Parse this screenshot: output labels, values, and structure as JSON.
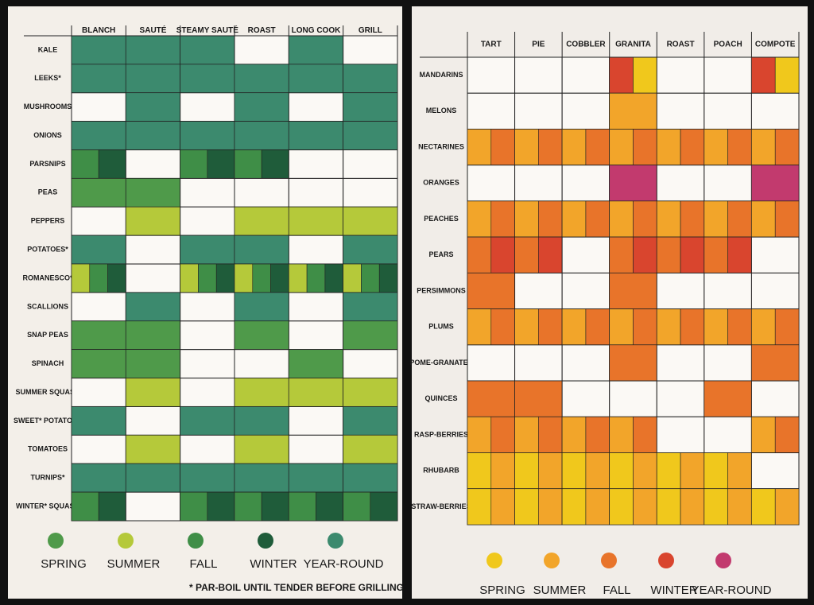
{
  "pages": [
    {
      "columns": [
        "BLANCH",
        "SAUTÉ",
        "STEAMY SAUTÉ",
        "ROAST",
        "LONG COOK",
        "GRILL"
      ],
      "rows": [
        "KALE",
        "LEEKS*",
        "MUSHROOMS",
        "ONIONS",
        "PARSNIPS",
        "PEAS",
        "PEPPERS",
        "POTATOES*",
        "ROMANESCO*",
        "SCALLIONS",
        "SNAP PEAS",
        "SPINACH",
        "SUMMER SQUASH",
        "SWEET* POTATOES",
        "TOMATOES",
        "TURNIPS*",
        "WINTER* SQUASH"
      ],
      "cells": [
        [
          [
            4
          ],
          [
            4
          ],
          [
            4
          ],
          [],
          [
            4
          ],
          []
        ],
        [
          [
            4
          ],
          [
            4
          ],
          [
            4
          ],
          [
            4
          ],
          [
            4
          ],
          [
            4
          ]
        ],
        [
          [],
          [
            4
          ],
          [],
          [
            4
          ],
          [],
          [
            4
          ]
        ],
        [
          [
            4
          ],
          [
            4
          ],
          [
            4
          ],
          [
            4
          ],
          [
            4
          ],
          [
            4
          ]
        ],
        [
          [
            2,
            3
          ],
          [],
          [
            2,
            3
          ],
          [
            2,
            3
          ],
          [],
          []
        ],
        [
          [
            0
          ],
          [
            0
          ],
          [],
          [],
          [],
          []
        ],
        [
          [],
          [
            1
          ],
          [],
          [
            1
          ],
          [
            1
          ],
          [
            1
          ]
        ],
        [
          [
            4
          ],
          [],
          [
            4
          ],
          [
            4
          ],
          [],
          [
            4
          ]
        ],
        [
          [
            1,
            2,
            3
          ],
          [],
          [
            1,
            2,
            3
          ],
          [
            1,
            2,
            3
          ],
          [
            1,
            2,
            3
          ],
          [
            1,
            2,
            3
          ]
        ],
        [
          [],
          [
            4
          ],
          [],
          [
            4
          ],
          [],
          [
            4
          ]
        ],
        [
          [
            0
          ],
          [
            0
          ],
          [],
          [
            0
          ],
          [],
          [
            0
          ]
        ],
        [
          [
            0
          ],
          [
            0
          ],
          [],
          [],
          [
            0
          ],
          []
        ],
        [
          [],
          [
            1
          ],
          [],
          [
            1
          ],
          [
            1
          ],
          [
            1
          ]
        ],
        [
          [
            4
          ],
          [],
          [
            4
          ],
          [
            4
          ],
          [],
          [
            4
          ]
        ],
        [
          [],
          [
            1
          ],
          [],
          [
            1
          ],
          [],
          [
            1
          ]
        ],
        [
          [
            4
          ],
          [
            4
          ],
          [
            4
          ],
          [
            4
          ],
          [
            4
          ],
          [
            4
          ]
        ],
        [
          [
            2,
            3
          ],
          [],
          [
            2,
            3
          ],
          [
            2,
            3
          ],
          [
            2,
            3
          ],
          [
            2,
            3
          ]
        ]
      ],
      "legend": [
        {
          "label": "SPRING",
          "color": "#4f9a4a"
        },
        {
          "label": "SUMMER",
          "color": "#b5c93a"
        },
        {
          "label": "FALL",
          "color": "#3f8e47"
        },
        {
          "label": "WINTER",
          "color": "#1f5c3a"
        },
        {
          "label": "YEAR-ROUND",
          "color": "#3c8a6e"
        }
      ],
      "footnote": "* PAR-BOIL UNTIL TENDER BEFORE GRILLING"
    },
    {
      "columns": [
        "TART",
        "PIE",
        "COBBLER",
        "GRANITA",
        "ROAST",
        "POACH",
        "COMPOTE"
      ],
      "rows": [
        "MANDARINS",
        "MELONS",
        "NECTARINES",
        "ORANGES",
        "PEACHES",
        "PEARS",
        "PERSIMMONS",
        "PLUMS",
        "POME-GRANATES",
        "QUINCES",
        "RASP-BERRIES",
        "RHUBARB",
        "STRAW-BERRIES"
      ],
      "cells": [
        [
          [],
          [],
          [],
          [
            3,
            0
          ],
          [],
          [],
          [
            3,
            0
          ]
        ],
        [
          [],
          [],
          [],
          [
            1
          ],
          [],
          [],
          []
        ],
        [
          [
            1,
            2
          ],
          [
            1,
            2
          ],
          [
            1,
            2
          ],
          [
            1,
            2
          ],
          [
            1,
            2
          ],
          [
            1,
            2
          ],
          [
            1,
            2
          ]
        ],
        [
          [],
          [],
          [],
          [
            4
          ],
          [],
          [],
          [
            4
          ]
        ],
        [
          [
            1,
            2
          ],
          [
            1,
            2
          ],
          [
            1,
            2
          ],
          [
            1,
            2
          ],
          [
            1,
            2
          ],
          [
            1,
            2
          ],
          [
            1,
            2
          ]
        ],
        [
          [
            2,
            3
          ],
          [
            2,
            3
          ],
          [],
          [
            2,
            3
          ],
          [
            2,
            3
          ],
          [
            2,
            3
          ],
          []
        ],
        [
          [
            2
          ],
          [],
          [],
          [
            2
          ],
          [],
          [],
          []
        ],
        [
          [
            1,
            2
          ],
          [
            1,
            2
          ],
          [
            1,
            2
          ],
          [
            1,
            2
          ],
          [
            1,
            2
          ],
          [
            1,
            2
          ],
          [
            1,
            2
          ]
        ],
        [
          [],
          [],
          [],
          [
            2
          ],
          [],
          [],
          [
            2
          ]
        ],
        [
          [
            2
          ],
          [
            2
          ],
          [],
          [],
          [],
          [
            2
          ],
          []
        ],
        [
          [
            1,
            2
          ],
          [
            1,
            2
          ],
          [
            1,
            2
          ],
          [
            1,
            2
          ],
          [],
          [],
          [
            1,
            2
          ]
        ],
        [
          [
            0,
            1
          ],
          [
            0,
            1
          ],
          [
            0,
            1
          ],
          [
            0,
            1
          ],
          [
            0,
            1
          ],
          [
            0,
            1
          ],
          []
        ],
        [
          [
            0,
            1
          ],
          [
            0,
            1
          ],
          [
            0,
            1
          ],
          [
            0,
            1
          ],
          [
            0,
            1
          ],
          [
            0,
            1
          ],
          [
            0,
            1
          ]
        ]
      ],
      "legend": [
        {
          "label": "SPRING",
          "color": "#f0c81c"
        },
        {
          "label": "SUMMER",
          "color": "#f2a52a"
        },
        {
          "label": "FALL",
          "color": "#e8742a"
        },
        {
          "label": "WINTER",
          "color": "#d9452e"
        },
        {
          "label": "YEAR-ROUND",
          "color": "#c23a6e"
        }
      ]
    }
  ]
}
